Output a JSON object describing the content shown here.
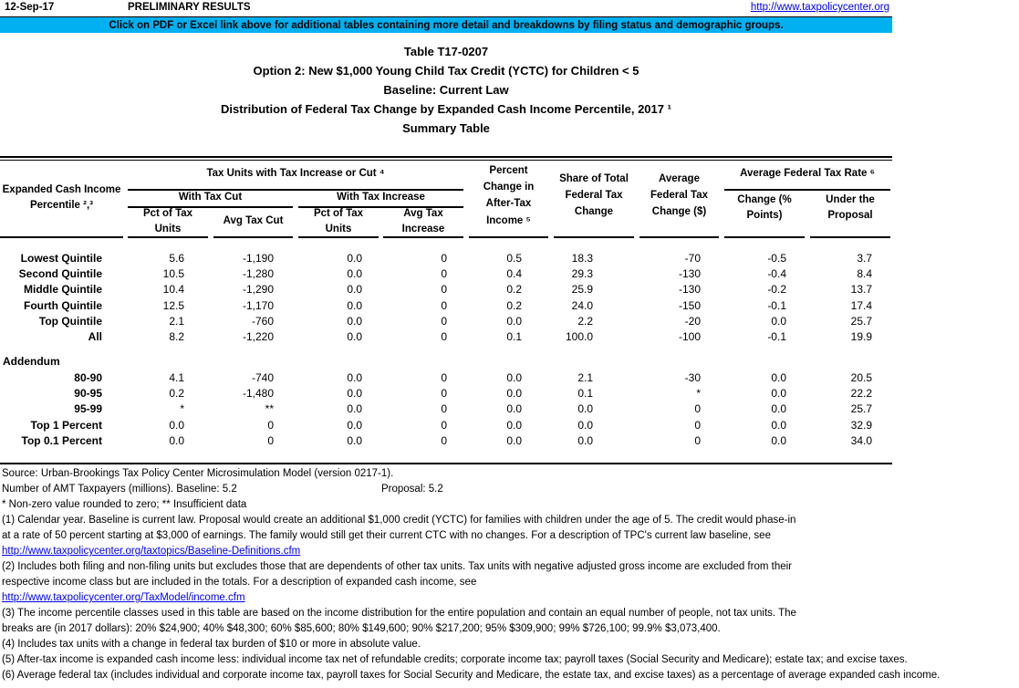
{
  "topbar": {
    "date": "12-Sep-17",
    "preliminary": "PRELIMINARY RESULTS",
    "url": "http://www.taxpolicycenter.org"
  },
  "banner": {
    "text": "Click on PDF or Excel link above for additional tables containing more detail and breakdowns by filing status and demographic groups.",
    "bg_color": "#00B0F0"
  },
  "titles": [
    "Table T17-0207",
    "Option 2: New $1,000 Young Child Tax Credit (YCTC) for Children < 5",
    "Baseline: Current Law",
    "Distribution of Federal Tax Change by Expanded Cash Income Percentile, 2017 ¹",
    "Summary Table"
  ],
  "table": {
    "header": {
      "row_label": [
        "Expanded Cash Income",
        "Percentile ²,³"
      ],
      "group_tax_units": "Tax Units with Tax Increase or Cut ⁴",
      "group_with_tax_cut": "With Tax Cut",
      "group_with_tax_increase": "With Tax Increase",
      "col_pct_units_cut": [
        "Pct of Tax",
        "Units"
      ],
      "col_avg_tax_cut": "Avg Tax Cut",
      "col_pct_units_inc": [
        "Pct of Tax",
        "Units"
      ],
      "col_avg_tax_increase": [
        "Avg Tax",
        "Increase"
      ],
      "col_pct_change": [
        "Percent",
        "Change in",
        "After-Tax",
        "Income ⁵"
      ],
      "col_share_total": [
        "Share of Total",
        "Federal Tax",
        "Change"
      ],
      "col_avg_change": [
        "Average",
        "Federal Tax",
        "Change ($)"
      ],
      "group_avg_rate": "Average Federal Tax Rate ⁶",
      "col_change_points": [
        "Change (%",
        "Points)"
      ],
      "col_under_proposal": [
        "Under the",
        "Proposal"
      ]
    },
    "rows": [
      [
        "Lowest Quintile",
        "5.6",
        "-1,190",
        "0.0",
        "0",
        "0.5",
        "18.3",
        "-70",
        "-0.5",
        "3.7"
      ],
      [
        "Second Quintile",
        "10.5",
        "-1,280",
        "0.0",
        "0",
        "0.4",
        "29.3",
        "-130",
        "-0.4",
        "8.4"
      ],
      [
        "Middle Quintile",
        "10.4",
        "-1,290",
        "0.0",
        "0",
        "0.2",
        "25.9",
        "-130",
        "-0.2",
        "13.7"
      ],
      [
        "Fourth Quintile",
        "12.5",
        "-1,170",
        "0.0",
        "0",
        "0.2",
        "24.0",
        "-150",
        "-0.1",
        "17.4"
      ],
      [
        "Top Quintile",
        "2.1",
        "-760",
        "0.0",
        "0",
        "0.0",
        "2.2",
        "-20",
        "0.0",
        "25.7"
      ],
      [
        "All",
        "8.2",
        "-1,220",
        "0.0",
        "0",
        "0.1",
        "100.0",
        "-100",
        "-0.1",
        "19.9"
      ]
    ],
    "addendum_label": "Addendum",
    "addendum_rows": [
      [
        "80-90",
        "4.1",
        "-740",
        "0.0",
        "0",
        "0.0",
        "2.1",
        "-30",
        "0.0",
        "20.5"
      ],
      [
        "90-95",
        "0.2",
        "-1,480",
        "0.0",
        "0",
        "0.0",
        "0.1",
        "*",
        "0.0",
        "22.2"
      ],
      [
        "95-99",
        "*",
        "**",
        "0.0",
        "0",
        "0.0",
        "0.0",
        "0",
        "0.0",
        "25.7"
      ],
      [
        "Top 1 Percent",
        "0.0",
        "0",
        "0.0",
        "0",
        "0.0",
        "0.0",
        "0",
        "0.0",
        "32.9"
      ],
      [
        "Top 0.1 Percent",
        "0.0",
        "0",
        "0.0",
        "0",
        "0.0",
        "0.0",
        "0",
        "0.0",
        "34.0"
      ]
    ]
  },
  "footnotes": [
    {
      "type": "text",
      "text": "Source: Urban-Brookings Tax Policy Center Microsimulation Model (version 0217-1)."
    },
    {
      "type": "amt",
      "left": "Number of AMT Taxpayers (millions).  Baseline: 5.2",
      "right": "Proposal: 5.2"
    },
    {
      "type": "text",
      "text": "* Non-zero value rounded to zero; ** Insufficient data"
    },
    {
      "type": "text",
      "text": "(1) Calendar year. Baseline is current law. Proposal would create an additional $1,000 credit (YCTC) for families with children under the age of 5. The credit would phase-in"
    },
    {
      "type": "text",
      "text": "at a rate of 50 percent starting at $3,000 of earnings. The family would still get their current CTC with no changes. For a description of TPC's current law baseline, see"
    },
    {
      "type": "link",
      "text": "http://www.taxpolicycenter.org/taxtopics/Baseline-Definitions.cfm"
    },
    {
      "type": "text",
      "text": "(2) Includes both filing and non-filing units but excludes those that are dependents of other tax units. Tax units with negative adjusted gross income are excluded from their"
    },
    {
      "type": "text",
      "text": "respective income class but are included in the totals. For a description of expanded cash income, see"
    },
    {
      "type": "link",
      "text": "http://www.taxpolicycenter.org/TaxModel/income.cfm"
    },
    {
      "type": "text",
      "text": "(3) The income percentile classes used in this table are based on the income distribution for the entire population and contain an equal number of people, not tax units. The"
    },
    {
      "type": "text",
      "text": "breaks are (in 2017 dollars): 20% $24,900; 40% $48,300; 60% $85,600; 80% $149,600; 90% $217,200; 95% $309,900; 99% $726,100; 99.9% $3,073,400."
    },
    {
      "type": "text",
      "text": "(4) Includes tax units with a change in federal tax burden of $10 or more in absolute value."
    },
    {
      "type": "text",
      "text": "(5) After-tax income is expanded cash income less: individual income tax net of refundable credits; corporate income tax; payroll taxes (Social Security and Medicare); estate tax; and excise taxes."
    },
    {
      "type": "text",
      "text": "(6) Average federal tax (includes individual and corporate income tax, payroll taxes for Social Security and Medicare, the estate tax, and excise taxes) as a percentage of average expanded cash income."
    }
  ],
  "colors": {
    "banner_bg": "#00B0F0",
    "link": "#0000EE",
    "text": "#000000"
  }
}
